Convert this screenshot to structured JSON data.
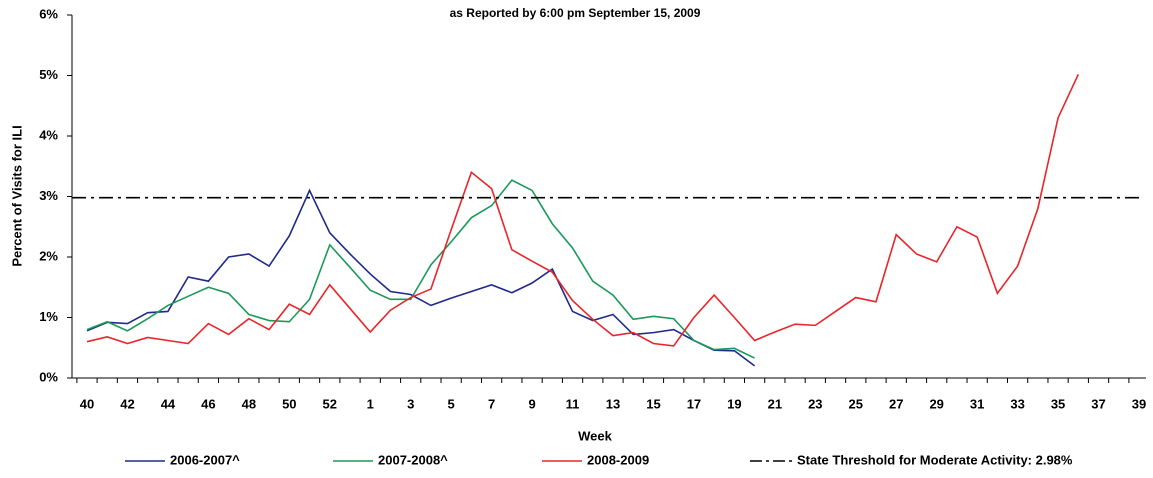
{
  "chart_data": {
    "type": "line",
    "title": "as Reported by 6:00 pm September 15, 2009",
    "x_label": "Week",
    "y_label": "Percent of Visits for ILI",
    "categories": [
      "40",
      null,
      "42",
      null,
      "44",
      null,
      "46",
      null,
      "48",
      null,
      "50",
      null,
      "52",
      null,
      "1",
      null,
      "3",
      null,
      "5",
      null,
      "7",
      null,
      "9",
      null,
      "11",
      null,
      "13",
      null,
      "15",
      null,
      "17",
      null,
      "19",
      null,
      "21",
      null,
      "23",
      null,
      "25",
      null,
      "27",
      null,
      "29",
      null,
      "31",
      null,
      "33",
      null,
      "35",
      null,
      "37",
      null,
      "39"
    ],
    "series": [
      {
        "name": "2006-2007^",
        "color": "#1f2a8a",
        "values": [
          0.78,
          0.92,
          0.9,
          1.08,
          1.1,
          1.67,
          1.6,
          2.0,
          2.05,
          1.85,
          2.35,
          3.1,
          2.4,
          2.05,
          1.72,
          1.43,
          1.38,
          1.2,
          1.32,
          1.43,
          1.54,
          1.41,
          1.57,
          1.8,
          1.1,
          0.95,
          1.05,
          0.72,
          0.75,
          0.8,
          0.62,
          0.46,
          0.45,
          0.2,
          null,
          null,
          null,
          null,
          null,
          null,
          null,
          null,
          null,
          null,
          null,
          null,
          null,
          null,
          null,
          null,
          null,
          null,
          null
        ]
      },
      {
        "name": "2007-2008^",
        "color": "#1a9a5a",
        "values": [
          0.8,
          0.93,
          0.78,
          0.98,
          1.2,
          1.35,
          1.5,
          1.4,
          1.05,
          0.95,
          0.93,
          1.3,
          2.2,
          1.83,
          1.45,
          1.3,
          1.3,
          1.87,
          2.25,
          2.65,
          2.85,
          3.27,
          3.1,
          2.55,
          2.15,
          1.6,
          1.37,
          0.97,
          1.02,
          0.98,
          0.62,
          0.47,
          0.49,
          0.33,
          null,
          null,
          null,
          null,
          null,
          null,
          null,
          null,
          null,
          null,
          null,
          null,
          null,
          null,
          null,
          null,
          null,
          null,
          null
        ]
      },
      {
        "name": "2008-2009",
        "color": "#e8262a",
        "values": [
          0.6,
          0.68,
          0.57,
          0.67,
          0.62,
          0.57,
          0.9,
          0.72,
          0.98,
          0.8,
          1.22,
          1.05,
          1.54,
          1.15,
          0.76,
          1.12,
          1.33,
          1.47,
          2.45,
          3.4,
          3.13,
          2.12,
          1.93,
          1.75,
          1.28,
          0.97,
          0.7,
          0.75,
          0.57,
          0.53,
          1.0,
          1.37,
          1.0,
          0.62,
          0.76,
          0.89,
          0.87,
          1.1,
          1.33,
          1.26,
          2.37,
          2.05,
          1.92,
          2.5,
          2.33,
          1.4,
          1.85,
          2.8,
          4.3,
          5.02,
          null,
          null,
          null
        ]
      }
    ],
    "threshold": {
      "name": "State Threshold for Moderate Activity: 2.98%",
      "value": 2.98,
      "color": "#000000"
    },
    "ylim": [
      0,
      6
    ],
    "yticks": [
      {
        "value": 0,
        "label": "0%"
      },
      {
        "value": 1,
        "label": "1%"
      },
      {
        "value": 2,
        "label": "2%"
      },
      {
        "value": 3,
        "label": "3%"
      },
      {
        "value": 4,
        "label": "4%"
      },
      {
        "value": 5,
        "label": "5%"
      },
      {
        "value": 6,
        "label": "6%"
      }
    ],
    "grid": false,
    "legend": "bottom"
  }
}
